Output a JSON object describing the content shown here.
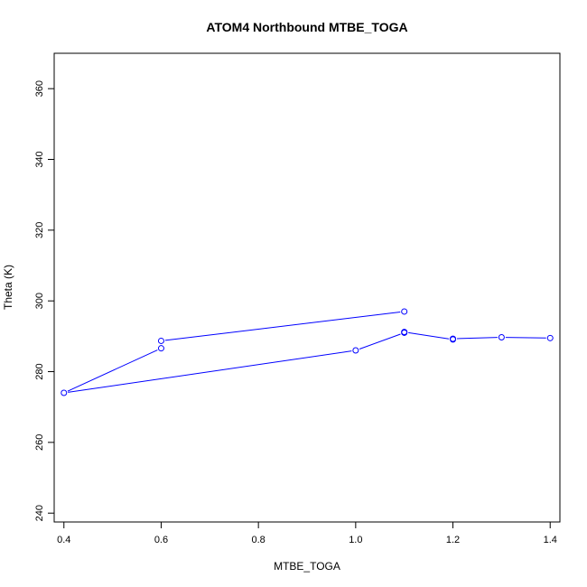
{
  "chart_data": {
    "type": "line",
    "title": "ATOM4 Northbound MTBE_TOGA",
    "xlabel": "MTBE_TOGA",
    "ylabel": "Theta (K)",
    "xlim": [
      0.38,
      1.42
    ],
    "ylim": [
      237.5,
      370
    ],
    "xticks": [
      0.4,
      0.6,
      0.8,
      1.0,
      1.2,
      1.4
    ],
    "xtick_labels": [
      "0.4",
      "0.6",
      "0.8",
      "1.0",
      "1.2",
      "1.4"
    ],
    "yticks": [
      240,
      260,
      280,
      300,
      320,
      340,
      360
    ],
    "ytick_labels": [
      "240",
      "260",
      "280",
      "300",
      "320",
      "340",
      "360"
    ],
    "grid": false,
    "series": [
      {
        "color": "#0000ff",
        "marker": "open-circle",
        "points": [
          {
            "x": 1.4,
            "y": 289.5
          },
          {
            "x": 1.3,
            "y": 289.7
          },
          {
            "x": 1.2,
            "y": 289.3
          },
          {
            "x": 1.2,
            "y": 289.1
          },
          {
            "x": 1.1,
            "y": 291.2
          },
          {
            "x": 1.1,
            "y": 291.0
          },
          {
            "x": 1.0,
            "y": 286.0
          },
          {
            "x": 0.4,
            "y": 274.0
          },
          {
            "x": 0.6,
            "y": 286.6
          },
          {
            "x": 0.6,
            "y": 288.7
          },
          {
            "x": 1.1,
            "y": 297.0
          }
        ]
      }
    ]
  }
}
